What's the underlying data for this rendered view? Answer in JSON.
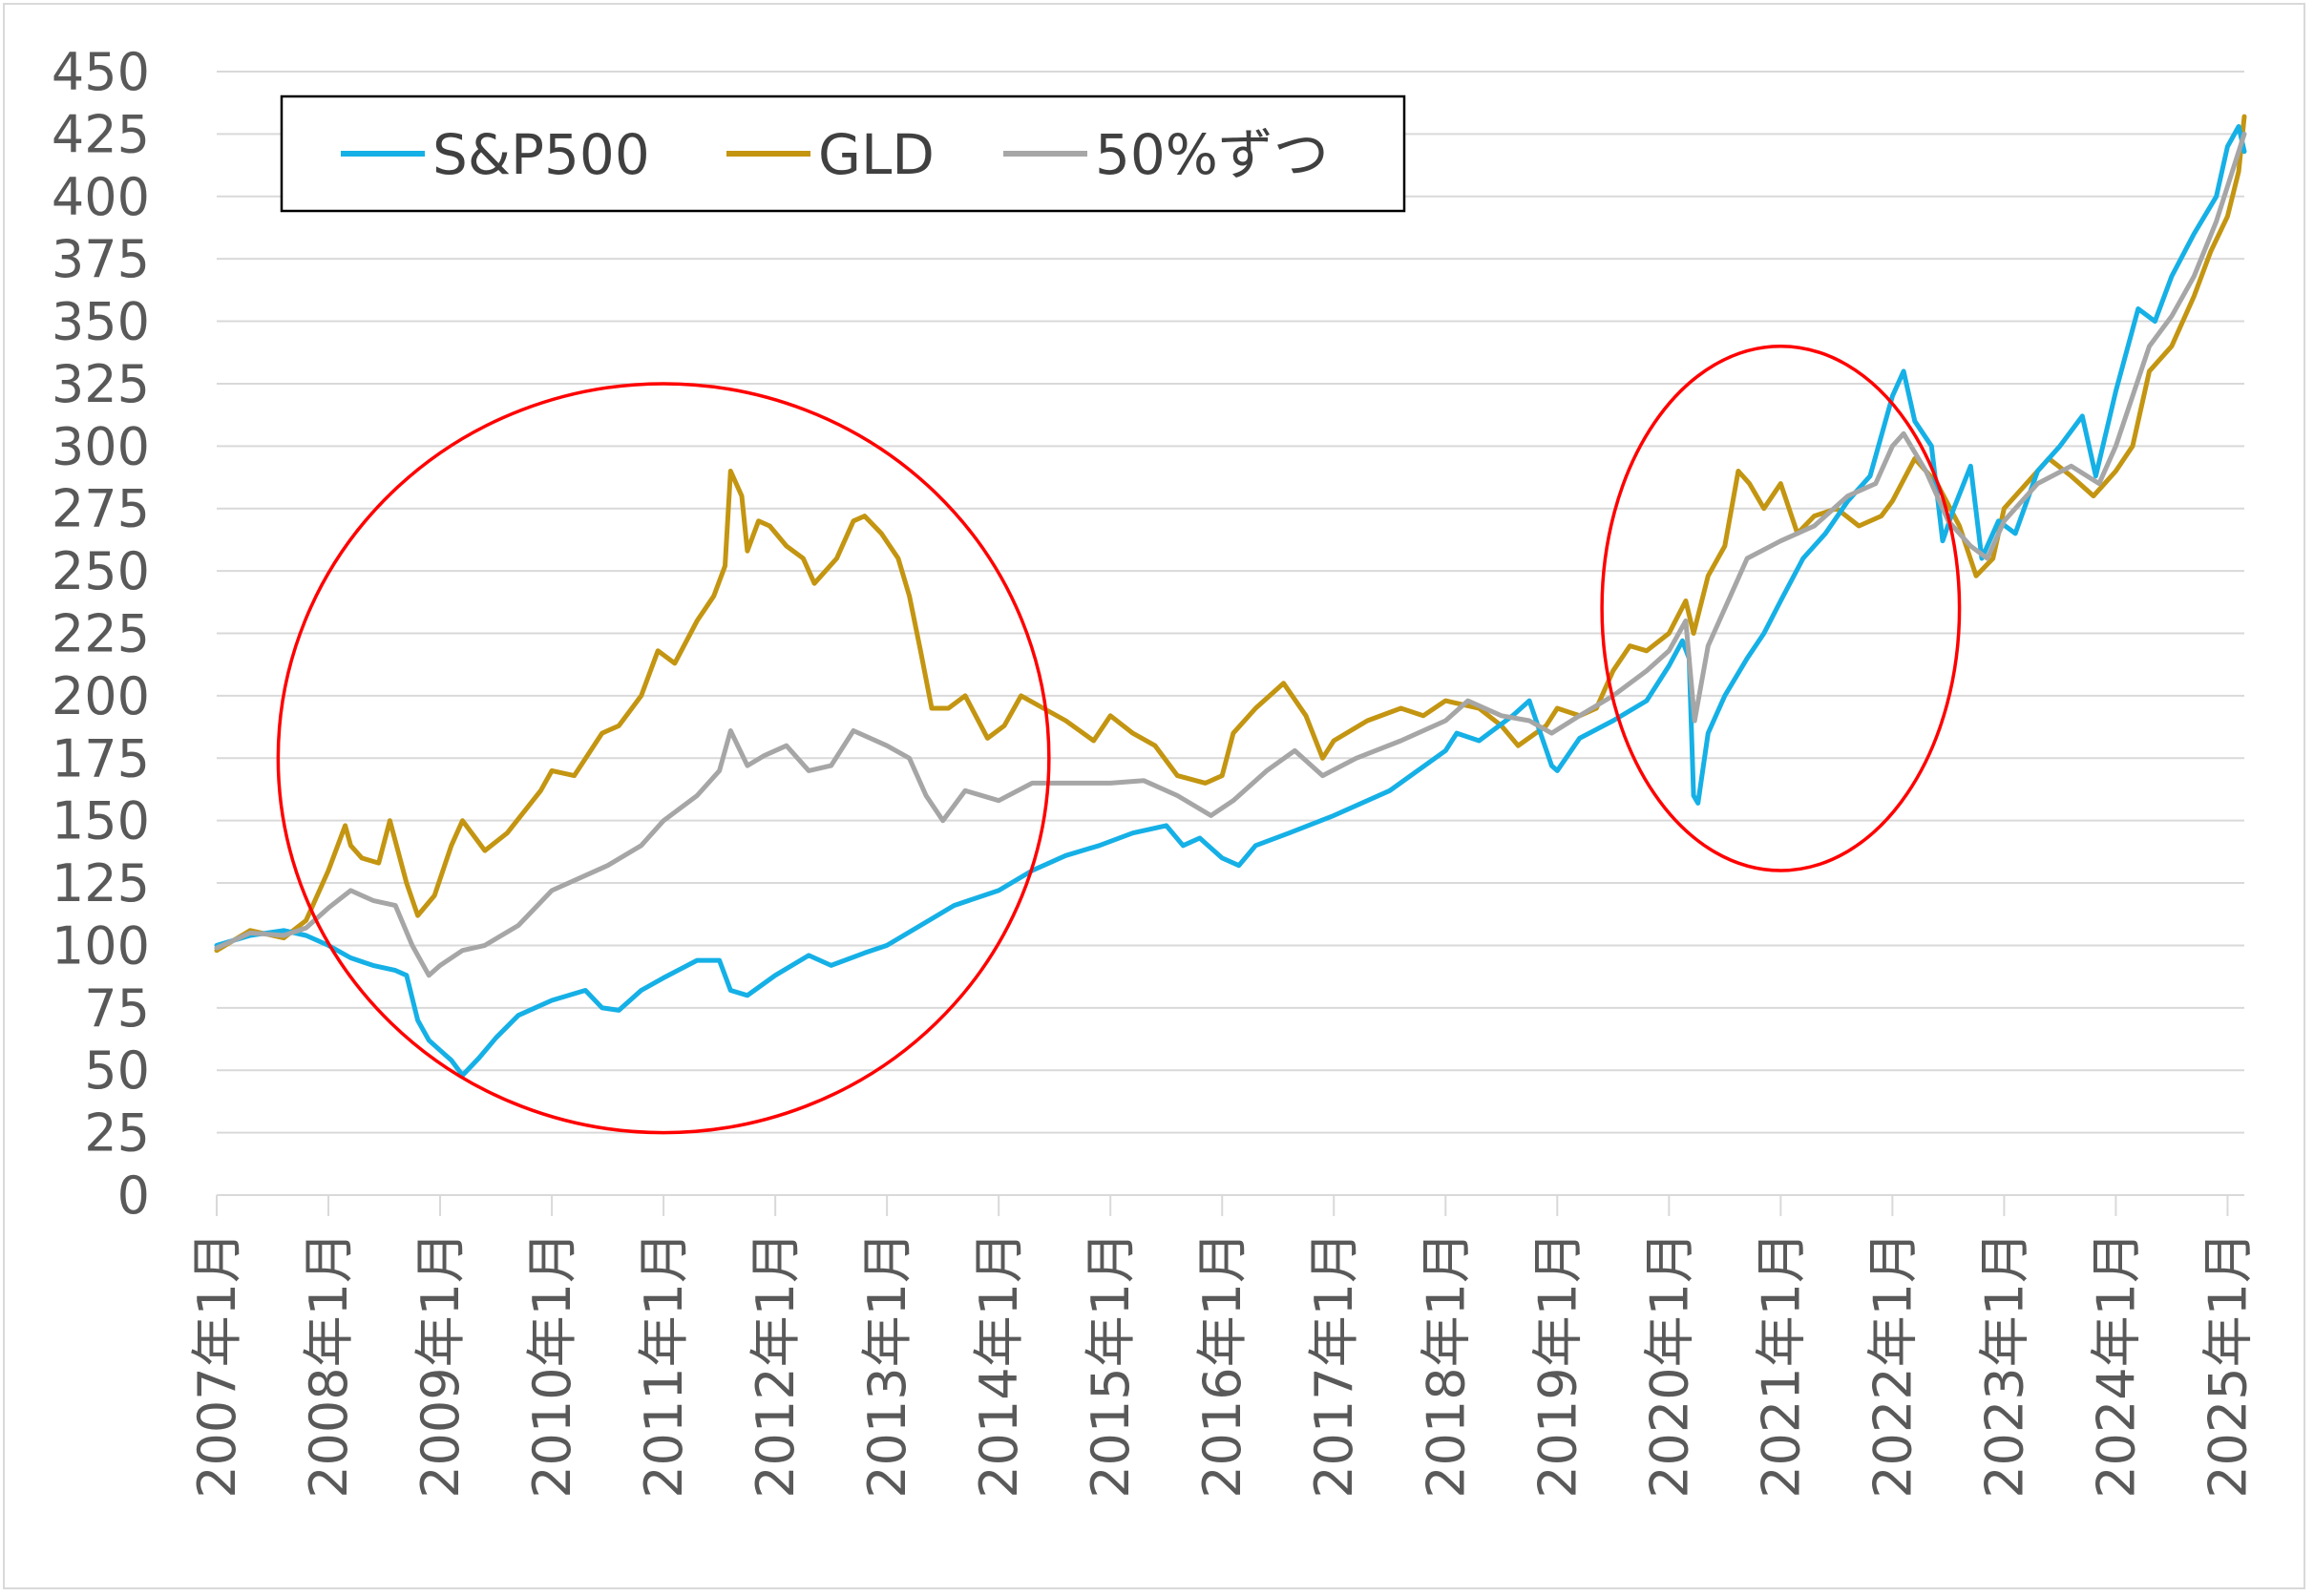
{
  "chart_data": {
    "type": "line",
    "title": "",
    "xlabel": "",
    "ylabel": "",
    "ylim": [
      0,
      450
    ],
    "yticks": [
      0,
      25,
      50,
      75,
      100,
      125,
      150,
      175,
      200,
      225,
      250,
      275,
      300,
      325,
      350,
      375,
      400,
      425,
      450
    ],
    "xlim": [
      2007.0,
      2025.15
    ],
    "xtick_labels": [
      "2007年1月",
      "2008年1月",
      "2009年1月",
      "2010年1月",
      "2011年1月",
      "2012年1月",
      "2013年1月",
      "2014年1月",
      "2015年1月",
      "2016年1月",
      "2017年1月",
      "2018年1月",
      "2019年1月",
      "2020年1月",
      "2021年1月",
      "2022年1月",
      "2023年1月",
      "2024年1月",
      "2025年1月"
    ],
    "grid": "horizontal",
    "legend_position": "top-left",
    "series": [
      {
        "name": "S&P500",
        "color": "#15b0e6",
        "points": [
          [
            2007.0,
            100
          ],
          [
            2007.3,
            104
          ],
          [
            2007.6,
            106
          ],
          [
            2007.8,
            104
          ],
          [
            2008.0,
            100
          ],
          [
            2008.2,
            95
          ],
          [
            2008.4,
            92
          ],
          [
            2008.6,
            90
          ],
          [
            2008.7,
            88
          ],
          [
            2008.8,
            70
          ],
          [
            2008.9,
            62
          ],
          [
            2009.0,
            58
          ],
          [
            2009.1,
            54
          ],
          [
            2009.2,
            48
          ],
          [
            2009.35,
            55
          ],
          [
            2009.5,
            63
          ],
          [
            2009.7,
            72
          ],
          [
            2010.0,
            78
          ],
          [
            2010.3,
            82
          ],
          [
            2010.45,
            75
          ],
          [
            2010.6,
            74
          ],
          [
            2010.8,
            82
          ],
          [
            2011.0,
            87
          ],
          [
            2011.3,
            94
          ],
          [
            2011.5,
            94
          ],
          [
            2011.6,
            82
          ],
          [
            2011.75,
            80
          ],
          [
            2012.0,
            88
          ],
          [
            2012.3,
            96
          ],
          [
            2012.5,
            92
          ],
          [
            2012.8,
            97
          ],
          [
            2013.0,
            100
          ],
          [
            2013.3,
            108
          ],
          [
            2013.6,
            116
          ],
          [
            2014.0,
            122
          ],
          [
            2014.3,
            130
          ],
          [
            2014.6,
            136
          ],
          [
            2014.9,
            140
          ],
          [
            2015.2,
            145
          ],
          [
            2015.5,
            148
          ],
          [
            2015.65,
            140
          ],
          [
            2015.8,
            143
          ],
          [
            2016.0,
            135
          ],
          [
            2016.15,
            132
          ],
          [
            2016.3,
            140
          ],
          [
            2016.6,
            145
          ],
          [
            2017.0,
            152
          ],
          [
            2017.5,
            162
          ],
          [
            2018.0,
            178
          ],
          [
            2018.1,
            185
          ],
          [
            2018.3,
            182
          ],
          [
            2018.6,
            192
          ],
          [
            2018.75,
            198
          ],
          [
            2018.95,
            172
          ],
          [
            2019.0,
            170
          ],
          [
            2019.2,
            183
          ],
          [
            2019.5,
            190
          ],
          [
            2019.8,
            198
          ],
          [
            2020.0,
            212
          ],
          [
            2020.12,
            222
          ],
          [
            2020.18,
            215
          ],
          [
            2020.22,
            160
          ],
          [
            2020.26,
            157
          ],
          [
            2020.35,
            185
          ],
          [
            2020.5,
            200
          ],
          [
            2020.7,
            215
          ],
          [
            2020.85,
            225
          ],
          [
            2021.0,
            238
          ],
          [
            2021.2,
            255
          ],
          [
            2021.4,
            265
          ],
          [
            2021.6,
            278
          ],
          [
            2021.8,
            288
          ],
          [
            2022.0,
            320
          ],
          [
            2022.1,
            330
          ],
          [
            2022.2,
            310
          ],
          [
            2022.35,
            300
          ],
          [
            2022.45,
            262
          ],
          [
            2022.55,
            275
          ],
          [
            2022.7,
            292
          ],
          [
            2022.8,
            255
          ],
          [
            2022.95,
            270
          ],
          [
            2023.1,
            265
          ],
          [
            2023.3,
            290
          ],
          [
            2023.5,
            300
          ],
          [
            2023.7,
            312
          ],
          [
            2023.82,
            288
          ],
          [
            2024.0,
            322
          ],
          [
            2024.2,
            355
          ],
          [
            2024.35,
            350
          ],
          [
            2024.5,
            368
          ],
          [
            2024.7,
            385
          ],
          [
            2024.9,
            400
          ],
          [
            2025.0,
            420
          ],
          [
            2025.1,
            428
          ],
          [
            2025.15,
            418
          ]
        ]
      },
      {
        "name": "GLD",
        "color": "#c39511",
        "points": [
          [
            2007.0,
            98
          ],
          [
            2007.3,
            106
          ],
          [
            2007.6,
            103
          ],
          [
            2007.8,
            110
          ],
          [
            2008.0,
            130
          ],
          [
            2008.15,
            148
          ],
          [
            2008.2,
            140
          ],
          [
            2008.3,
            135
          ],
          [
            2008.45,
            133
          ],
          [
            2008.55,
            150
          ],
          [
            2008.7,
            125
          ],
          [
            2008.8,
            112
          ],
          [
            2008.95,
            120
          ],
          [
            2009.1,
            140
          ],
          [
            2009.2,
            150
          ],
          [
            2009.4,
            138
          ],
          [
            2009.6,
            145
          ],
          [
            2009.9,
            162
          ],
          [
            2010.0,
            170
          ],
          [
            2010.2,
            168
          ],
          [
            2010.45,
            185
          ],
          [
            2010.6,
            188
          ],
          [
            2010.8,
            200
          ],
          [
            2010.95,
            218
          ],
          [
            2011.1,
            213
          ],
          [
            2011.3,
            230
          ],
          [
            2011.45,
            240
          ],
          [
            2011.55,
            252
          ],
          [
            2011.6,
            290
          ],
          [
            2011.7,
            280
          ],
          [
            2011.75,
            258
          ],
          [
            2011.85,
            270
          ],
          [
            2011.95,
            268
          ],
          [
            2012.1,
            260
          ],
          [
            2012.25,
            255
          ],
          [
            2012.35,
            245
          ],
          [
            2012.55,
            255
          ],
          [
            2012.7,
            270
          ],
          [
            2012.8,
            272
          ],
          [
            2012.95,
            265
          ],
          [
            2013.1,
            255
          ],
          [
            2013.2,
            240
          ],
          [
            2013.3,
            218
          ],
          [
            2013.4,
            195
          ],
          [
            2013.55,
            195
          ],
          [
            2013.7,
            200
          ],
          [
            2013.9,
            183
          ],
          [
            2014.05,
            188
          ],
          [
            2014.2,
            200
          ],
          [
            2014.4,
            195
          ],
          [
            2014.6,
            190
          ],
          [
            2014.85,
            182
          ],
          [
            2015.0,
            192
          ],
          [
            2015.2,
            185
          ],
          [
            2015.4,
            180
          ],
          [
            2015.6,
            168
          ],
          [
            2015.85,
            165
          ],
          [
            2016.0,
            168
          ],
          [
            2016.1,
            185
          ],
          [
            2016.3,
            195
          ],
          [
            2016.55,
            205
          ],
          [
            2016.75,
            192
          ],
          [
            2016.9,
            175
          ],
          [
            2017.0,
            182
          ],
          [
            2017.3,
            190
          ],
          [
            2017.6,
            195
          ],
          [
            2017.8,
            192
          ],
          [
            2018.0,
            198
          ],
          [
            2018.3,
            195
          ],
          [
            2018.5,
            188
          ],
          [
            2018.65,
            180
          ],
          [
            2018.9,
            188
          ],
          [
            2019.0,
            195
          ],
          [
            2019.2,
            192
          ],
          [
            2019.35,
            195
          ],
          [
            2019.5,
            210
          ],
          [
            2019.65,
            220
          ],
          [
            2019.8,
            218
          ],
          [
            2020.0,
            225
          ],
          [
            2020.15,
            238
          ],
          [
            2020.22,
            225
          ],
          [
            2020.35,
            248
          ],
          [
            2020.5,
            260
          ],
          [
            2020.62,
            290
          ],
          [
            2020.72,
            285
          ],
          [
            2020.85,
            275
          ],
          [
            2021.0,
            285
          ],
          [
            2021.15,
            265
          ],
          [
            2021.3,
            272
          ],
          [
            2021.5,
            275
          ],
          [
            2021.7,
            268
          ],
          [
            2021.9,
            272
          ],
          [
            2022.0,
            278
          ],
          [
            2022.2,
            295
          ],
          [
            2022.4,
            285
          ],
          [
            2022.6,
            268
          ],
          [
            2022.75,
            248
          ],
          [
            2022.9,
            255
          ],
          [
            2023.0,
            275
          ],
          [
            2023.2,
            285
          ],
          [
            2023.4,
            295
          ],
          [
            2023.6,
            288
          ],
          [
            2023.8,
            280
          ],
          [
            2024.0,
            290
          ],
          [
            2024.15,
            300
          ],
          [
            2024.3,
            330
          ],
          [
            2024.5,
            340
          ],
          [
            2024.7,
            360
          ],
          [
            2024.85,
            378
          ],
          [
            2025.0,
            392
          ],
          [
            2025.1,
            410
          ],
          [
            2025.15,
            432
          ]
        ]
      },
      {
        "name": "50%ずつ",
        "color": "#a6a6a6",
        "points": [
          [
            2007.0,
            99
          ],
          [
            2007.3,
            105
          ],
          [
            2007.6,
            104
          ],
          [
            2007.8,
            107
          ],
          [
            2008.0,
            115
          ],
          [
            2008.2,
            122
          ],
          [
            2008.4,
            118
          ],
          [
            2008.6,
            116
          ],
          [
            2008.75,
            100
          ],
          [
            2008.9,
            88
          ],
          [
            2009.0,
            92
          ],
          [
            2009.2,
            98
          ],
          [
            2009.4,
            100
          ],
          [
            2009.7,
            108
          ],
          [
            2010.0,
            122
          ],
          [
            2010.3,
            128
          ],
          [
            2010.5,
            132
          ],
          [
            2010.8,
            140
          ],
          [
            2011.0,
            150
          ],
          [
            2011.3,
            160
          ],
          [
            2011.5,
            170
          ],
          [
            2011.6,
            186
          ],
          [
            2011.75,
            172
          ],
          [
            2011.9,
            176
          ],
          [
            2012.1,
            180
          ],
          [
            2012.3,
            170
          ],
          [
            2012.5,
            172
          ],
          [
            2012.7,
            186
          ],
          [
            2013.0,
            180
          ],
          [
            2013.2,
            175
          ],
          [
            2013.35,
            160
          ],
          [
            2013.5,
            150
          ],
          [
            2013.7,
            162
          ],
          [
            2014.0,
            158
          ],
          [
            2014.3,
            165
          ],
          [
            2014.6,
            165
          ],
          [
            2015.0,
            165
          ],
          [
            2015.3,
            166
          ],
          [
            2015.6,
            160
          ],
          [
            2015.9,
            152
          ],
          [
            2016.1,
            158
          ],
          [
            2016.4,
            170
          ],
          [
            2016.65,
            178
          ],
          [
            2016.9,
            168
          ],
          [
            2017.2,
            175
          ],
          [
            2017.6,
            182
          ],
          [
            2018.0,
            190
          ],
          [
            2018.2,
            198
          ],
          [
            2018.5,
            192
          ],
          [
            2018.75,
            190
          ],
          [
            2018.95,
            185
          ],
          [
            2019.2,
            192
          ],
          [
            2019.5,
            200
          ],
          [
            2019.8,
            210
          ],
          [
            2020.0,
            218
          ],
          [
            2020.15,
            230
          ],
          [
            2020.23,
            190
          ],
          [
            2020.35,
            220
          ],
          [
            2020.55,
            240
          ],
          [
            2020.7,
            255
          ],
          [
            2021.0,
            262
          ],
          [
            2021.3,
            268
          ],
          [
            2021.6,
            280
          ],
          [
            2021.85,
            285
          ],
          [
            2022.0,
            300
          ],
          [
            2022.1,
            305
          ],
          [
            2022.3,
            290
          ],
          [
            2022.5,
            270
          ],
          [
            2022.7,
            260
          ],
          [
            2022.85,
            255
          ],
          [
            2023.0,
            270
          ],
          [
            2023.3,
            285
          ],
          [
            2023.6,
            292
          ],
          [
            2023.85,
            285
          ],
          [
            2024.0,
            300
          ],
          [
            2024.3,
            340
          ],
          [
            2024.5,
            352
          ],
          [
            2024.7,
            368
          ],
          [
            2024.9,
            390
          ],
          [
            2025.1,
            418
          ],
          [
            2025.15,
            425
          ]
        ]
      }
    ],
    "annotations": [
      {
        "type": "ellipse",
        "color": "#ff0000",
        "cx": 2011.0,
        "cy": 175,
        "rx_years": 3.45,
        "ry": 150
      },
      {
        "type": "ellipse",
        "color": "#ff0000",
        "cx": 2021.0,
        "cy": 235,
        "rx_years": 1.6,
        "ry": 105
      }
    ]
  }
}
